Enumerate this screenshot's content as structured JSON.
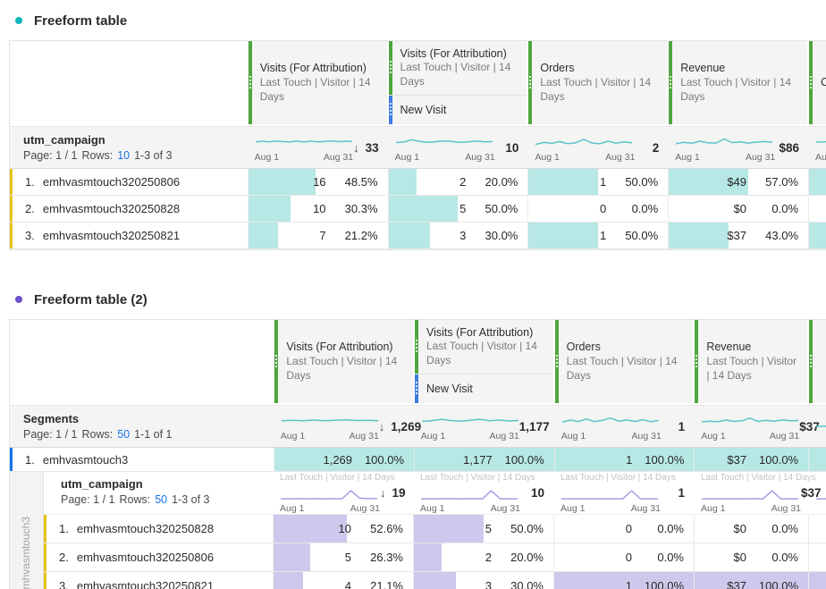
{
  "colors": {
    "teal_fill": "#b7e8e5",
    "purple_fill": "#cfc8ec",
    "teal_spark": "#5bc4c9",
    "purple_spark": "#a89de2",
    "green_accent": "#4fa63f",
    "blue_accent": "#3d7be3",
    "yellow_accent": "#e2c512",
    "segment_blue": "#1273e6",
    "link_blue": "#1473e6",
    "teal_dot": "#0fb5bc",
    "purple_dot": "#6b4ec9"
  },
  "spark_labels": {
    "start": "Aug 1",
    "end": "Aug 31"
  },
  "sort_arrow": "↓",
  "attribution_label": "Last Touch | Visitor | 14 Days",
  "table1": {
    "title": "Freeform table",
    "columns": [
      {
        "title": "Visits (For Attribution)",
        "subtitle": "Last Touch | Visitor | 14 Days"
      },
      {
        "title": "Visits (For Attribution)",
        "subtitle": "Last Touch | Visitor | 14 Days",
        "child": "New Visit"
      },
      {
        "title": "Orders",
        "subtitle": "Last Touch | Visitor | 14 Days"
      },
      {
        "title": "Revenue",
        "subtitle": "Last Touch | Visitor | 14 Days"
      },
      {
        "title": "C"
      }
    ],
    "dimension": {
      "name": "utm_campaign",
      "page": "Page: 1 / 1",
      "rows_label": "Rows:",
      "rows_value": "10",
      "range": "1-3 of 3"
    },
    "totals": [
      "33",
      "10",
      "2",
      "$86"
    ],
    "sparks": [
      {
        "points": [
          5.2,
          5.6,
          5.1,
          5.8,
          5.3,
          5.1,
          5.7,
          5.2,
          5.6,
          5.1,
          5.5,
          5.9,
          5.3,
          5.6,
          5.4
        ]
      },
      {
        "points": [
          4.6,
          5.1,
          6.6,
          5.4,
          4.9,
          5.3,
          5.9,
          5.4,
          4.9,
          5.2,
          5.8,
          5.1,
          5.4
        ]
      },
      {
        "points": [
          3.4,
          4.8,
          4.1,
          5.4,
          3.9,
          4.5,
          7.0,
          4.4,
          3.8,
          5.6,
          4.3,
          5.2,
          4.5
        ]
      },
      {
        "points": [
          3.8,
          4.9,
          4.2,
          5.6,
          4.5,
          4.3,
          7.2,
          4.7,
          5.2,
          4.3,
          5.0,
          5.4,
          4.8
        ]
      },
      {
        "points": [
          5.0,
          5.5,
          5.2,
          5.8,
          5.3
        ]
      }
    ],
    "rows": [
      {
        "num": "1.",
        "name": "emhvasmtouch320250806",
        "cells": [
          {
            "value": "16",
            "pct": "48.5%",
            "fill": 48.5
          },
          {
            "value": "2",
            "pct": "20.0%",
            "fill": 20
          },
          {
            "value": "1",
            "pct": "50.0%",
            "fill": 50
          },
          {
            "value": "$49",
            "pct": "57.0%",
            "fill": 57
          },
          {
            "value": "",
            "pct": "",
            "fill": 100
          }
        ]
      },
      {
        "num": "2.",
        "name": "emhvasmtouch320250828",
        "cells": [
          {
            "value": "10",
            "pct": "30.3%",
            "fill": 30.3
          },
          {
            "value": "5",
            "pct": "50.0%",
            "fill": 50
          },
          {
            "value": "0",
            "pct": "0.0%",
            "fill": 0
          },
          {
            "value": "$0",
            "pct": "0.0%",
            "fill": 0
          },
          {
            "value": "",
            "pct": "",
            "fill": 0
          }
        ]
      },
      {
        "num": "3.",
        "name": "emhvasmtouch320250821",
        "cells": [
          {
            "value": "7",
            "pct": "21.2%",
            "fill": 21.2
          },
          {
            "value": "3",
            "pct": "30.0%",
            "fill": 30
          },
          {
            "value": "1",
            "pct": "50.0%",
            "fill": 50
          },
          {
            "value": "$37",
            "pct": "43.0%",
            "fill": 43
          },
          {
            "value": "",
            "pct": "",
            "fill": 100
          }
        ]
      }
    ]
  },
  "table2": {
    "title": "Freeform table (2)",
    "columns": [
      {
        "title": "Visits (For Attribution)",
        "subtitle": "Last Touch | Visitor | 14 Days"
      },
      {
        "title": "Visits (For Attribution)",
        "subtitle": "Last Touch | Visitor | 14 Days",
        "child": "New Visit"
      },
      {
        "title": "Orders",
        "subtitle": "Last Touch | Visitor | 14 Days"
      },
      {
        "title": "Revenue",
        "subtitle": "Last Touch | Visitor | 14 Days"
      },
      {
        "title": ""
      }
    ],
    "dimension": {
      "name": "Segments",
      "page": "Page: 1 / 1",
      "rows_label": "Rows:",
      "rows_value": "50",
      "range": "1-1 of 1"
    },
    "totals": [
      "1,269",
      "1,177",
      "1",
      "$37"
    ],
    "sparks": [
      {
        "points": [
          5.2,
          5.5,
          5.1,
          5.6,
          5.2,
          5.5,
          5.8,
          5.3,
          5.5,
          5.2
        ]
      },
      {
        "points": [
          4.7,
          5.2,
          6.2,
          5.3,
          4.9,
          5.5,
          6.2,
          5.2,
          5.6,
          5.0,
          5.3
        ]
      },
      {
        "points": [
          4.2,
          5.6,
          4.6,
          6.4,
          4.6,
          5.5,
          7.0,
          4.9,
          5.7,
          4.7,
          5.9,
          4.5,
          5.3
        ]
      },
      {
        "points": [
          4.4,
          4.9,
          4.5,
          5.7,
          4.7,
          5.1,
          7.0,
          4.7,
          5.5,
          4.9,
          5.7,
          5.1,
          5.3
        ]
      },
      {
        "points": [
          5.0,
          5.4,
          5.1,
          5.6
        ]
      }
    ],
    "segment_row": {
      "num": "1.",
      "name": "emhvasmtouch3",
      "cells": [
        {
          "value": "1,269",
          "pct": "100.0%",
          "fill": 100
        },
        {
          "value": "1,177",
          "pct": "100.0%",
          "fill": 100
        },
        {
          "value": "1",
          "pct": "100.0%",
          "fill": 100
        },
        {
          "value": "$37",
          "pct": "100.0%",
          "fill": 100
        },
        {
          "value": "",
          "pct": "",
          "fill": 100
        }
      ]
    },
    "nested": {
      "gutter_label": "emhvasmtouch3",
      "dimension": {
        "name": "utm_campaign",
        "page": "Page: 1 / 1",
        "rows_label": "Rows:",
        "rows_value": "50",
        "range": "1-3 of 3"
      },
      "totals": [
        "19",
        "10",
        "1",
        "$37"
      ],
      "sparks": [
        {
          "points": [
            1.2,
            1.2,
            1.3,
            1.2,
            1.3,
            1.2,
            1.3,
            1.2,
            6.8,
            1.6,
            1.3,
            1.4
          ]
        },
        {
          "points": [
            1.2,
            1.2,
            1.2,
            1.3,
            1.2,
            1.2,
            1.3,
            1.2,
            6.8,
            1.3,
            1.2,
            1.2
          ]
        },
        {
          "points": [
            1.2,
            1.2,
            1.2,
            1.2,
            1.2,
            1.2,
            1.2,
            1.2,
            6.8,
            1.2,
            1.2,
            1.2
          ]
        },
        {
          "points": [
            1.2,
            1.2,
            1.2,
            1.2,
            1.2,
            1.2,
            1.3,
            1.2,
            6.8,
            1.2,
            1.2,
            1.2
          ]
        },
        {
          "points": [
            1.2,
            1.2,
            1.2,
            6.8,
            1.2
          ]
        }
      ],
      "rows": [
        {
          "num": "1.",
          "name": "emhvasmtouch320250828",
          "cells": [
            {
              "value": "10",
              "pct": "52.6%",
              "fill": 52.6
            },
            {
              "value": "5",
              "pct": "50.0%",
              "fill": 50
            },
            {
              "value": "0",
              "pct": "0.0%",
              "fill": 0
            },
            {
              "value": "$0",
              "pct": "0.0%",
              "fill": 0
            },
            {
              "value": "",
              "pct": "",
              "fill": 0
            }
          ]
        },
        {
          "num": "2.",
          "name": "emhvasmtouch320250806",
          "cells": [
            {
              "value": "5",
              "pct": "26.3%",
              "fill": 26.3
            },
            {
              "value": "2",
              "pct": "20.0%",
              "fill": 20
            },
            {
              "value": "0",
              "pct": "0.0%",
              "fill": 0
            },
            {
              "value": "$0",
              "pct": "0.0%",
              "fill": 0
            },
            {
              "value": "",
              "pct": "",
              "fill": 0
            }
          ]
        },
        {
          "num": "3.",
          "name": "emhvasmtouch320250821",
          "cells": [
            {
              "value": "4",
              "pct": "21.1%",
              "fill": 21.1
            },
            {
              "value": "3",
              "pct": "30.0%",
              "fill": 30
            },
            {
              "value": "1",
              "pct": "100.0%",
              "fill": 100
            },
            {
              "value": "$37",
              "pct": "100.0%",
              "fill": 100
            },
            {
              "value": "",
              "pct": "",
              "fill": 100
            }
          ]
        }
      ]
    }
  }
}
